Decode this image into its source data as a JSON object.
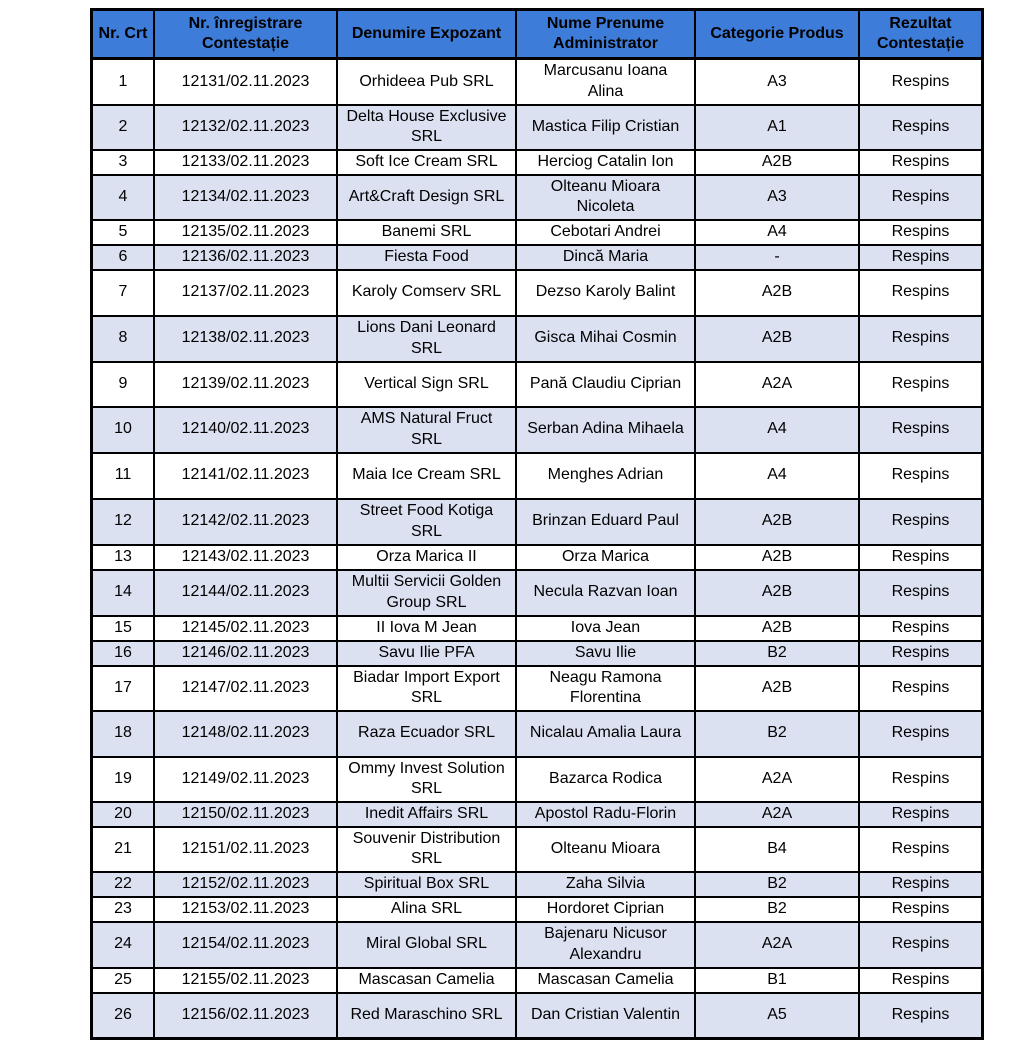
{
  "colors": {
    "header_bg": "#3d7cd9",
    "row_alt_bg": "#dce1f2",
    "border": "#000000",
    "text": "#000000"
  },
  "table": {
    "headers": [
      "Nr. Crt",
      "Nr. înregistrare Contestație",
      "Denumire Expozant",
      "Nume Prenume Administrator",
      "Categorie Produs",
      "Rezultat Contestație"
    ],
    "rows": [
      [
        "1",
        "12131/02.11.2023",
        "Orhideea Pub SRL",
        "Marcusanu Ioana Alina",
        "A3",
        "Respins"
      ],
      [
        "2",
        "12132/02.11.2023",
        "Delta House Exclusive SRL",
        "Mastica Filip Cristian",
        "A1",
        "Respins"
      ],
      [
        "3",
        "12133/02.11.2023",
        "Soft Ice Cream SRL",
        "Herciog Catalin Ion",
        "A2B",
        "Respins"
      ],
      [
        "4",
        "12134/02.11.2023",
        "Art&Craft Design SRL",
        "Olteanu Mioara Nicoleta",
        "A3",
        "Respins"
      ],
      [
        "5",
        "12135/02.11.2023",
        "Banemi SRL",
        "Cebotari Andrei",
        "A4",
        "Respins"
      ],
      [
        "6",
        "12136/02.11.2023",
        "Fiesta Food",
        "Dincă Maria",
        "-",
        "Respins"
      ],
      [
        "7",
        "12137/02.11.2023",
        "Karoly Comserv SRL",
        "Dezso Karoly Balint",
        "A2B",
        "Respins"
      ],
      [
        "8",
        "12138/02.11.2023",
        "Lions Dani Leonard SRL",
        "Gisca Mihai Cosmin",
        "A2B",
        "Respins"
      ],
      [
        "9",
        "12139/02.11.2023",
        "Vertical Sign SRL",
        "Pană Claudiu Ciprian",
        "A2A",
        "Respins"
      ],
      [
        "10",
        "12140/02.11.2023",
        "AMS Natural Fruct SRL",
        "Serban Adina Mihaela",
        "A4",
        "Respins"
      ],
      [
        "11",
        "12141/02.11.2023",
        "Maia Ice Cream SRL",
        "Menghes Adrian",
        "A4",
        "Respins"
      ],
      [
        "12",
        "12142/02.11.2023",
        "Street Food Kotiga SRL",
        "Brinzan Eduard Paul",
        "A2B",
        "Respins"
      ],
      [
        "13",
        "12143/02.11.2023",
        "Orza Marica II",
        "Orza Marica",
        "A2B",
        "Respins"
      ],
      [
        "14",
        "12144/02.11.2023",
        "Multii Servicii Golden Group SRL",
        "Necula Razvan Ioan",
        "A2B",
        "Respins"
      ],
      [
        "15",
        "12145/02.11.2023",
        "II Iova M Jean",
        "Iova Jean",
        "A2B",
        "Respins"
      ],
      [
        "16",
        "12146/02.11.2023",
        "Savu Ilie PFA",
        "Savu Ilie",
        "B2",
        "Respins"
      ],
      [
        "17",
        "12147/02.11.2023",
        "Biadar Import Export SRL",
        "Neagu Ramona Florentina",
        "A2B",
        "Respins"
      ],
      [
        "18",
        "12148/02.11.2023",
        "Raza Ecuador SRL",
        "Nicalau Amalia Laura",
        "B2",
        "Respins"
      ],
      [
        "19",
        "12149/02.11.2023",
        "Ommy Invest Solution SRL",
        "Bazarca Rodica",
        "A2A",
        "Respins"
      ],
      [
        "20",
        "12150/02.11.2023",
        "Inedit Affairs SRL",
        "Apostol Radu-Florin",
        "A2A",
        "Respins"
      ],
      [
        "21",
        "12151/02.11.2023",
        "Souvenir Distribution SRL",
        "Olteanu Mioara",
        "B4",
        "Respins"
      ],
      [
        "22",
        "12152/02.11.2023",
        "Spiritual Box SRL",
        "Zaha Silvia",
        "B2",
        "Respins"
      ],
      [
        "23",
        "12153/02.11.2023",
        "Alina SRL",
        "Hordoret Ciprian",
        "B2",
        "Respins"
      ],
      [
        "24",
        "12154/02.11.2023",
        "Miral Global SRL",
        "Bajenaru Nicusor Alexandru",
        "A2A",
        "Respins"
      ],
      [
        "25",
        "12155/02.11.2023",
        "Mascasan Camelia",
        "Mascasan Camelia",
        "B1",
        "Respins"
      ],
      [
        "26",
        "12156/02.11.2023",
        "Red Maraschino SRL",
        "Dan Cristian Valentin",
        "A5",
        "Respins"
      ]
    ]
  }
}
